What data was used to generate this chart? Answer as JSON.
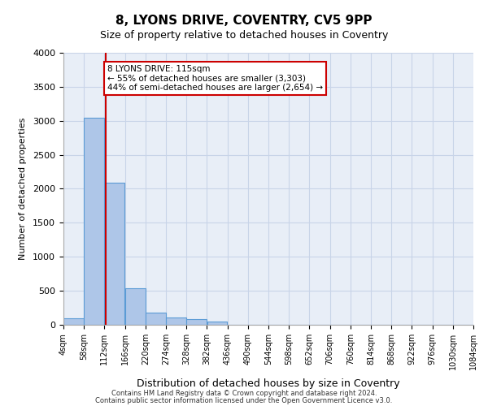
{
  "title": "8, LYONS DRIVE, COVENTRY, CV5 9PP",
  "subtitle": "Size of property relative to detached houses in Coventry",
  "xlabel": "Distribution of detached houses by size in Coventry",
  "ylabel": "Number of detached properties",
  "bar_color": "#aec6e8",
  "bar_edge_color": "#5b9bd5",
  "grid_color": "#c8d4e8",
  "background_color": "#e8eef7",
  "annotation_box_color": "#cc0000",
  "property_line_color": "#cc0000",
  "property_size": 115,
  "annotation_title": "8 LYONS DRIVE: 115sqm",
  "annotation_line1": "← 55% of detached houses are smaller (3,303)",
  "annotation_line2": "44% of semi-detached houses are larger (2,654) →",
  "footer_line1": "Contains HM Land Registry data © Crown copyright and database right 2024.",
  "footer_line2": "Contains public sector information licensed under the Open Government Licence v3.0.",
  "bin_edges": [
    4,
    58,
    112,
    166,
    220,
    274,
    328,
    382,
    436,
    490,
    544,
    598,
    652,
    706,
    760,
    814,
    868,
    922,
    976,
    1030,
    1084
  ],
  "bar_heights": [
    100,
    3050,
    2090,
    535,
    175,
    110,
    80,
    50,
    0,
    0,
    0,
    0,
    0,
    0,
    0,
    0,
    0,
    0,
    0,
    0
  ],
  "ylim": [
    0,
    4000
  ],
  "yticks": [
    0,
    500,
    1000,
    1500,
    2000,
    2500,
    3000,
    3500,
    4000
  ]
}
